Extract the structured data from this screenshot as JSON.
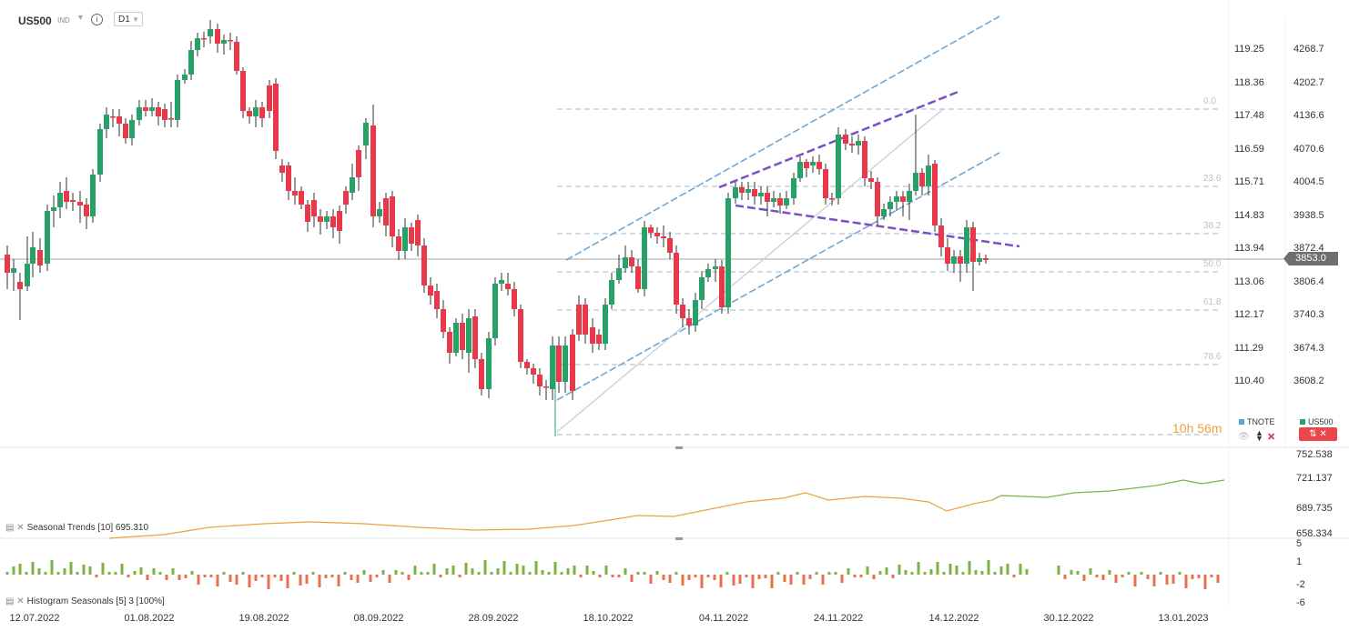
{
  "toolbar": {
    "symbol": "US500",
    "symbol_type": "IND",
    "interval": "D1"
  },
  "main_chart": {
    "right_axis": [
      "4268.7",
      "4202.7",
      "4136.6",
      "4070.6",
      "4004.5",
      "3938.5",
      "3872.4",
      "3806.4",
      "3740.3",
      "3674.3",
      "3608.2"
    ],
    "left_axis": [
      "119.25",
      "118.36",
      "117.48",
      "116.59",
      "115.71",
      "114.83",
      "113.94",
      "113.06",
      "112.17",
      "111.29",
      "110.40"
    ],
    "fib_levels": [
      "0.0",
      "23.6",
      "38.2",
      "50.0",
      "61.8",
      "78.6"
    ],
    "last_price": "3853.0",
    "timer": "10h 56m",
    "legend": {
      "series1": "TNOTE",
      "series2": "US500"
    },
    "colors": {
      "up": "#26a269",
      "down": "#e8384a",
      "channel": "#6ea8d6",
      "wedge": "#7a4fc7",
      "fib": "#b8c4d6"
    }
  },
  "seasonal_trends": {
    "label": "Seasonal Trends [10] 695.310",
    "axis": [
      "752.538",
      "721.137",
      "689.735",
      "658.334"
    ],
    "colors": {
      "past": "#f0a040",
      "future": "#7cb342"
    }
  },
  "histogram": {
    "label": "Histogram Seasonals [5] 3 [100%]",
    "axis": [
      "5",
      "1",
      "-2",
      "-6"
    ],
    "colors": {
      "pos": "#7cb342",
      "neg": "#e8704a"
    }
  },
  "x_axis": [
    "12.07.2022",
    "01.08.2022",
    "19.08.2022",
    "08.09.2022",
    "28.09.2022",
    "18.10.2022",
    "04.11.2022",
    "24.11.2022",
    "14.12.2022",
    "30.12.2022",
    "13.01.2023"
  ]
}
